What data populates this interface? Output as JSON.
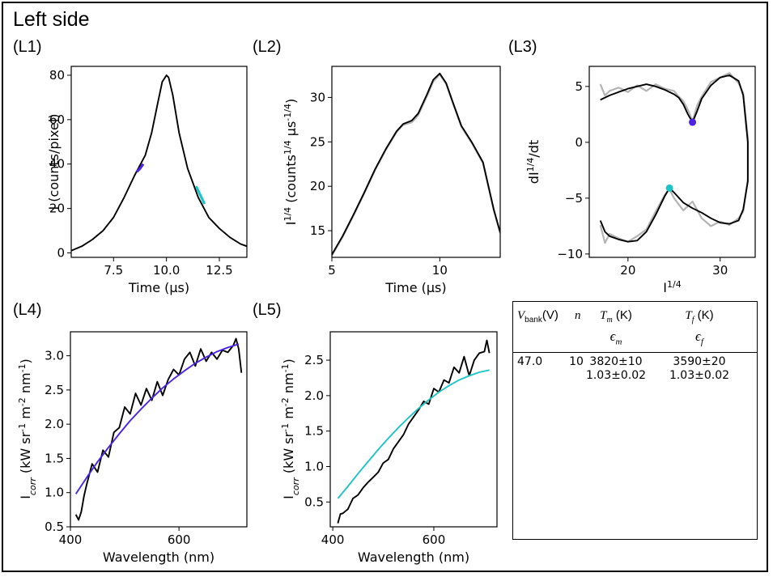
{
  "page": {
    "title": "Left side"
  },
  "colors": {
    "blue": "#4b22e6",
    "cyan": "#1ec4c4",
    "gray": "#b4b4b4",
    "black": "#000000"
  },
  "chart_data": [
    {
      "id": "L1",
      "panel_label": "(L1)",
      "type": "line",
      "title": "",
      "xlabel": "Time (μs)",
      "ylabel": "I (counts/pixel)",
      "xlim": [
        5.5,
        13.8
      ],
      "ylim": [
        -2,
        84
      ],
      "xticks": [
        7.5,
        10.0,
        12.5
      ],
      "xtick_labels": [
        "7.5",
        "10.0",
        "12.5"
      ],
      "yticks": [
        0,
        20,
        40,
        60,
        80
      ],
      "ytick_labels": [
        "0",
        "20",
        "40",
        "60",
        "80"
      ],
      "series": [
        {
          "name": "intensity",
          "color": "black",
          "x": [
            5.5,
            6.0,
            6.5,
            7.0,
            7.5,
            8.0,
            8.5,
            9.0,
            9.3,
            9.6,
            9.8,
            10.0,
            10.1,
            10.3,
            10.6,
            11.0,
            11.5,
            12.0,
            12.5,
            13.0,
            13.5,
            13.8
          ],
          "y": [
            1,
            3,
            6,
            10,
            16,
            25,
            35,
            44,
            54,
            68,
            77,
            80,
            79,
            71,
            54,
            38,
            25,
            16,
            11,
            7,
            4,
            3
          ]
        },
        {
          "name": "blue marker segment",
          "color": "blue",
          "x": [
            8.6,
            8.75,
            8.9
          ],
          "y": [
            36.5,
            38,
            40
          ]
        },
        {
          "name": "cyan marker segment",
          "color": "cyan",
          "x": [
            11.4,
            11.6,
            11.8
          ],
          "y": [
            30,
            26,
            22
          ]
        }
      ]
    },
    {
      "id": "L2",
      "panel_label": "(L2)",
      "type": "line",
      "title": "",
      "xlabel": "Time (μs)",
      "ylabel": "I^{1/4} (counts^{1/4} μs^{-1/4})",
      "xlim": [
        5,
        12.8
      ],
      "ylim": [
        12,
        33.5
      ],
      "xticks": [
        5,
        10
      ],
      "xtick_labels": [
        "5",
        "10"
      ],
      "yticks": [
        15,
        20,
        25,
        30
      ],
      "ytick_labels": [
        "15",
        "20",
        "25",
        "30"
      ],
      "series": [
        {
          "name": "raw",
          "color": "gray",
          "x": [
            5.0,
            5.5,
            6.0,
            6.5,
            7.0,
            7.5,
            8.0,
            8.3,
            8.7,
            9.0,
            9.4,
            9.7,
            10.0,
            10.3,
            10.6,
            11.0,
            11.5,
            12.0,
            12.5,
            12.8
          ],
          "y": [
            12.2,
            14.3,
            16.7,
            19.2,
            21.8,
            24.1,
            26.1,
            26.9,
            27.2,
            28.0,
            30.1,
            31.8,
            32.6,
            31.5,
            29.4,
            26.7,
            24.8,
            22.6,
            17.3,
            14.7
          ]
        },
        {
          "name": "smoothed",
          "color": "black",
          "x": [
            5.0,
            5.5,
            6.0,
            6.5,
            7.0,
            7.5,
            8.0,
            8.3,
            8.7,
            9.0,
            9.4,
            9.7,
            10.0,
            10.3,
            10.6,
            11.0,
            11.5,
            12.0,
            12.5,
            12.8
          ],
          "y": [
            12.3,
            14.4,
            16.8,
            19.3,
            21.9,
            24.2,
            26.2,
            27.0,
            27.4,
            28.2,
            30.3,
            32.0,
            32.7,
            31.6,
            29.5,
            26.8,
            24.9,
            22.7,
            17.4,
            14.8
          ]
        }
      ]
    },
    {
      "id": "L3",
      "panel_label": "(L3)",
      "type": "line",
      "title": "",
      "xlabel": "I^{1/4}",
      "ylabel": "dI^{1/4}/dt",
      "xlim": [
        15.8,
        33.8
      ],
      "ylim": [
        -10.3,
        6.8
      ],
      "xticks": [
        20,
        30
      ],
      "xtick_labels": [
        "20",
        "30"
      ],
      "yticks": [
        5,
        0,
        -5,
        -10
      ],
      "ytick_labels": [
        "5",
        "0",
        "−5",
        "−10"
      ],
      "series": [
        {
          "name": "raw",
          "color": "gray",
          "x": [
            17,
            17.5,
            18,
            19,
            20,
            21,
            22,
            23,
            24,
            25,
            25.5,
            26,
            26.5,
            27,
            27.5,
            28,
            29,
            30,
            31,
            32,
            32.5,
            33,
            33,
            32.5,
            32,
            31,
            30,
            29,
            28,
            27,
            26,
            25,
            24.5,
            24,
            23,
            22,
            21,
            20,
            19,
            18,
            17.5,
            17
          ],
          "y": [
            5.2,
            4.2,
            4.6,
            4.9,
            4.5,
            5.1,
            4.6,
            5.2,
            4.8,
            4.6,
            4.1,
            3.7,
            2.9,
            1.9,
            3.3,
            4.1,
            5.4,
            5.8,
            6.2,
            5.3,
            4.4,
            0.4,
            -3.3,
            -6.2,
            -6.8,
            -7.4,
            -7.1,
            -7.5,
            -6.8,
            -5.3,
            -6.1,
            -5.0,
            -4.2,
            -4.7,
            -6.2,
            -7.8,
            -8.4,
            -8.9,
            -8.6,
            -8.2,
            -9.0,
            -7.4
          ]
        },
        {
          "name": "smoothed",
          "color": "black",
          "x": [
            17,
            17.5,
            18,
            19,
            20,
            21,
            22,
            23,
            24,
            25,
            25.5,
            26,
            26.5,
            27,
            27.5,
            28,
            29,
            30,
            31,
            32,
            32.5,
            33,
            33,
            32.5,
            32,
            31,
            30,
            29,
            28,
            27,
            26,
            25,
            24.5,
            24,
            23,
            22,
            21,
            20,
            19,
            18,
            17.5,
            17
          ],
          "y": [
            3.8,
            4.0,
            4.2,
            4.5,
            4.8,
            5.0,
            5.2,
            5.0,
            4.7,
            4.3,
            4.0,
            3.4,
            2.5,
            1.8,
            2.8,
            3.9,
            5.1,
            5.8,
            6.0,
            5.5,
            4.2,
            0.0,
            -3.5,
            -6.0,
            -7.0,
            -7.3,
            -7.2,
            -6.8,
            -6.3,
            -5.9,
            -5.4,
            -4.5,
            -4.1,
            -4.8,
            -6.5,
            -8.0,
            -8.8,
            -8.9,
            -8.7,
            -8.4,
            -8.0,
            -7.0
          ]
        },
        {
          "name": "blue point",
          "color": "blue",
          "x": [
            27.0
          ],
          "y": [
            1.8
          ]
        },
        {
          "name": "cyan point",
          "color": "cyan",
          "x": [
            24.5
          ],
          "y": [
            -4.1
          ]
        }
      ]
    },
    {
      "id": "L4",
      "panel_label": "(L4)",
      "type": "line",
      "title": "",
      "xlabel": "Wavelength (nm)",
      "ylabel": "I_{corr} (kW sr^{-1} m^{-2} nm^{-1})",
      "xlim": [
        400,
        725
      ],
      "ylim": [
        0.5,
        3.35
      ],
      "xticks": [
        400,
        600
      ],
      "xtick_labels": [
        "400",
        "600"
      ],
      "yticks": [
        0.5,
        1.0,
        1.5,
        2.0,
        2.5,
        3.0
      ],
      "ytick_labels": [
        "0.5",
        "1.0",
        "1.5",
        "2.0",
        "2.5",
        "3.0"
      ],
      "series": [
        {
          "name": "measured",
          "color": "black",
          "x": [
            410,
            415,
            420,
            425,
            430,
            440,
            450,
            460,
            470,
            480,
            490,
            500,
            510,
            520,
            530,
            540,
            550,
            560,
            570,
            580,
            590,
            600,
            610,
            620,
            630,
            640,
            650,
            660,
            670,
            680,
            690,
            700,
            705,
            710,
            715
          ],
          "y": [
            0.68,
            0.6,
            0.72,
            0.95,
            1.12,
            1.42,
            1.3,
            1.62,
            1.52,
            1.88,
            1.95,
            2.25,
            2.15,
            2.45,
            2.28,
            2.52,
            2.35,
            2.62,
            2.42,
            2.65,
            2.8,
            2.72,
            2.95,
            3.05,
            2.85,
            3.1,
            2.92,
            3.05,
            2.95,
            3.08,
            3.05,
            3.15,
            3.25,
            3.1,
            2.75
          ]
        },
        {
          "name": "fit",
          "color": "blue",
          "x": [
            410,
            430,
            450,
            470,
            490,
            510,
            530,
            550,
            570,
            590,
            610,
            630,
            650,
            670,
            690,
            710
          ],
          "y": [
            0.98,
            1.22,
            1.45,
            1.66,
            1.86,
            2.05,
            2.22,
            2.38,
            2.53,
            2.66,
            2.78,
            2.89,
            2.98,
            3.06,
            3.12,
            3.17
          ]
        }
      ]
    },
    {
      "id": "L5",
      "panel_label": "(L5)",
      "type": "line",
      "title": "",
      "xlabel": "Wavelength (nm)",
      "ylabel": "I_{corr} (kW sr^{-1} m^{-2} nm^{-1})",
      "xlim": [
        395,
        725
      ],
      "ylim": [
        0.15,
        2.9
      ],
      "xticks": [
        400,
        600
      ],
      "xtick_labels": [
        "400",
        "600"
      ],
      "yticks": [
        0.5,
        1.0,
        1.5,
        2.0,
        2.5
      ],
      "ytick_labels": [
        "0.5",
        "1.0",
        "1.5",
        "2.0",
        "2.5"
      ],
      "series": [
        {
          "name": "measured",
          "color": "black",
          "x": [
            410,
            415,
            420,
            430,
            440,
            450,
            460,
            470,
            480,
            490,
            500,
            510,
            520,
            530,
            540,
            550,
            560,
            570,
            580,
            590,
            600,
            610,
            620,
            630,
            640,
            650,
            660,
            670,
            680,
            690,
            700,
            705,
            710
          ],
          "y": [
            0.2,
            0.33,
            0.34,
            0.4,
            0.55,
            0.6,
            0.7,
            0.78,
            0.85,
            0.92,
            1.05,
            1.1,
            1.25,
            1.35,
            1.45,
            1.6,
            1.7,
            1.8,
            1.92,
            1.88,
            2.1,
            2.05,
            2.22,
            2.18,
            2.4,
            2.32,
            2.55,
            2.28,
            2.5,
            2.6,
            2.62,
            2.78,
            2.6
          ]
        },
        {
          "name": "fit",
          "color": "cyan",
          "x": [
            410,
            430,
            450,
            470,
            490,
            510,
            530,
            550,
            570,
            590,
            610,
            630,
            650,
            670,
            690,
            710
          ],
          "y": [
            0.55,
            0.72,
            0.9,
            1.07,
            1.24,
            1.4,
            1.55,
            1.69,
            1.82,
            1.94,
            2.05,
            2.14,
            2.22,
            2.28,
            2.33,
            2.36
          ]
        }
      ]
    }
  ],
  "table": {
    "headers": {
      "v_bank": "V",
      "v_bank_sub": "bank",
      "v_bank_unit": "(V)",
      "n": "n",
      "t_m": "T",
      "t_m_sub": "m",
      "t_m_unit": "(K)",
      "t_f": "T",
      "t_f_sub": "f",
      "t_f_unit": "(K)",
      "eps_m": "ϵ",
      "eps_m_sub": "m",
      "eps_f": "ϵ",
      "eps_f_sub": "f"
    },
    "row": {
      "v_bank": "47.0",
      "n": "10",
      "t_m": "3820±10",
      "eps_m": "1.03±0.02",
      "t_f": "3590±20",
      "eps_f": "1.03±0.02"
    }
  }
}
